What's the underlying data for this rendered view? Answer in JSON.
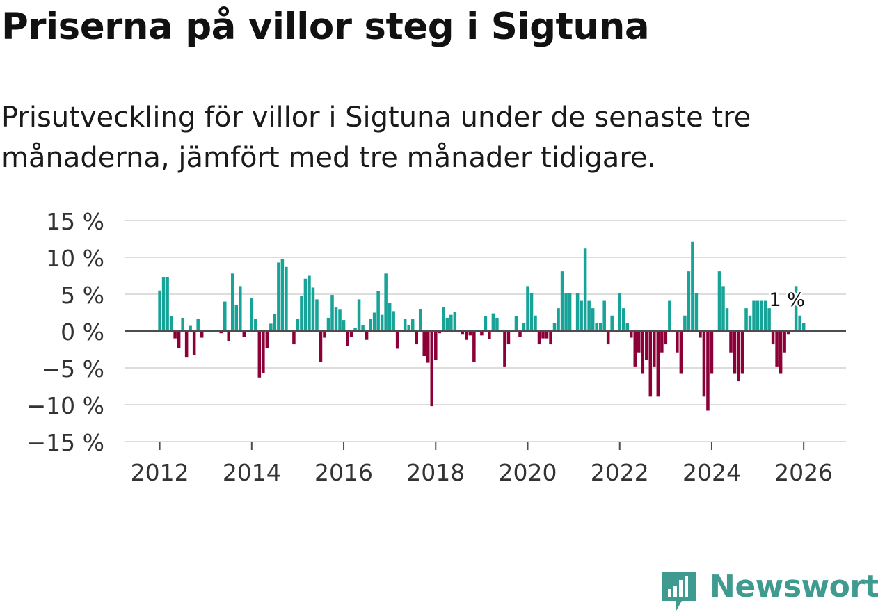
{
  "title": "Priserna på villor steg i Sigtuna",
  "subtitle": "Prisutveckling för villor i Sigtuna under de senaste tre månaderna, jämfört med tre månader tidigare.",
  "logo": {
    "text": "Newsworthy",
    "icon": "newsworthy-logo-icon",
    "color": "#3f9a8f"
  },
  "colors": {
    "positive": "#17a398",
    "negative": "#8c0038",
    "grid": "#dddddd",
    "zero_line": "#4d4d4d",
    "axis_text": "#333333"
  },
  "chart_data": {
    "type": "bar",
    "title": "Priserna på villor steg i Sigtuna",
    "xlabel": "",
    "ylabel": "",
    "ylim": [
      -15,
      15
    ],
    "yticks": [
      15,
      10,
      5,
      0,
      -5,
      -10,
      -15
    ],
    "ytick_labels": [
      "15 %",
      "10 %",
      "5 %",
      "0 %",
      "−5 %",
      "−10 %",
      "−15 %"
    ],
    "xlim": [
      2011.25,
      2026.92
    ],
    "xticks": [
      2012,
      2014,
      2016,
      2018,
      2020,
      2022,
      2024,
      2026
    ],
    "xtick_labels": [
      "2012",
      "2014",
      "2016",
      "2018",
      "2020",
      "2022",
      "2024",
      "2026"
    ],
    "start": {
      "year": 2012,
      "month": 1
    },
    "values": [
      5.5,
      7.3,
      7.3,
      2.0,
      -1.0,
      -2.3,
      1.8,
      -3.6,
      0.7,
      -3.3,
      1.7,
      -0.9,
      0.0,
      0.0,
      0.0,
      0.0,
      -0.3,
      4.0,
      -1.4,
      7.8,
      3.5,
      6.1,
      -0.8,
      0.0,
      4.5,
      1.7,
      -6.3,
      -5.7,
      -2.3,
      1.0,
      2.3,
      9.3,
      9.8,
      8.7,
      0.0,
      -1.8,
      1.7,
      4.8,
      7.1,
      7.5,
      5.9,
      4.3,
      -4.2,
      -0.9,
      1.8,
      4.9,
      3.2,
      2.9,
      1.5,
      -2.0,
      -0.8,
      0.4,
      4.3,
      0.8,
      -1.2,
      1.6,
      2.5,
      5.4,
      2.2,
      7.8,
      3.8,
      2.7,
      -2.4,
      0.0,
      1.7,
      0.8,
      1.6,
      -1.8,
      3.0,
      -3.4,
      -4.3,
      -10.2,
      -3.9,
      -0.3,
      3.3,
      1.8,
      2.2,
      2.6,
      0.0,
      -0.4,
      -1.2,
      -0.6,
      -4.2,
      0.0,
      -0.6,
      2.0,
      -1.1,
      2.4,
      1.8,
      0.0,
      -4.8,
      -1.8,
      0.0,
      2.0,
      -0.8,
      1.1,
      6.1,
      5.1,
      2.1,
      -1.8,
      -1.0,
      -1.0,
      -1.8,
      1.1,
      3.1,
      8.1,
      5.1,
      5.1,
      0.0,
      5.1,
      4.1,
      11.2,
      4.1,
      3.1,
      1.1,
      1.1,
      4.1,
      -1.8,
      2.1,
      0.0,
      5.1,
      3.1,
      1.1,
      -0.9,
      -4.8,
      -2.9,
      -5.8,
      -3.9,
      -8.9,
      -4.8,
      -8.9,
      -2.9,
      -1.8,
      4.1,
      0.0,
      -2.9,
      -5.8,
      2.1,
      8.1,
      12.1,
      5.1,
      -0.9,
      -8.9,
      -10.8,
      -5.8,
      0.0,
      8.1,
      6.1,
      3.1,
      -2.9,
      -5.8,
      -6.8,
      -5.8,
      3.1,
      2.1,
      4.1,
      4.1,
      4.1,
      4.1,
      3.1,
      -1.8,
      -4.8,
      -5.8,
      -2.9,
      -0.4,
      0.0,
      6.1,
      2.1,
      1.1
    ],
    "annotation": {
      "text": "1 %",
      "value": 1
    }
  }
}
